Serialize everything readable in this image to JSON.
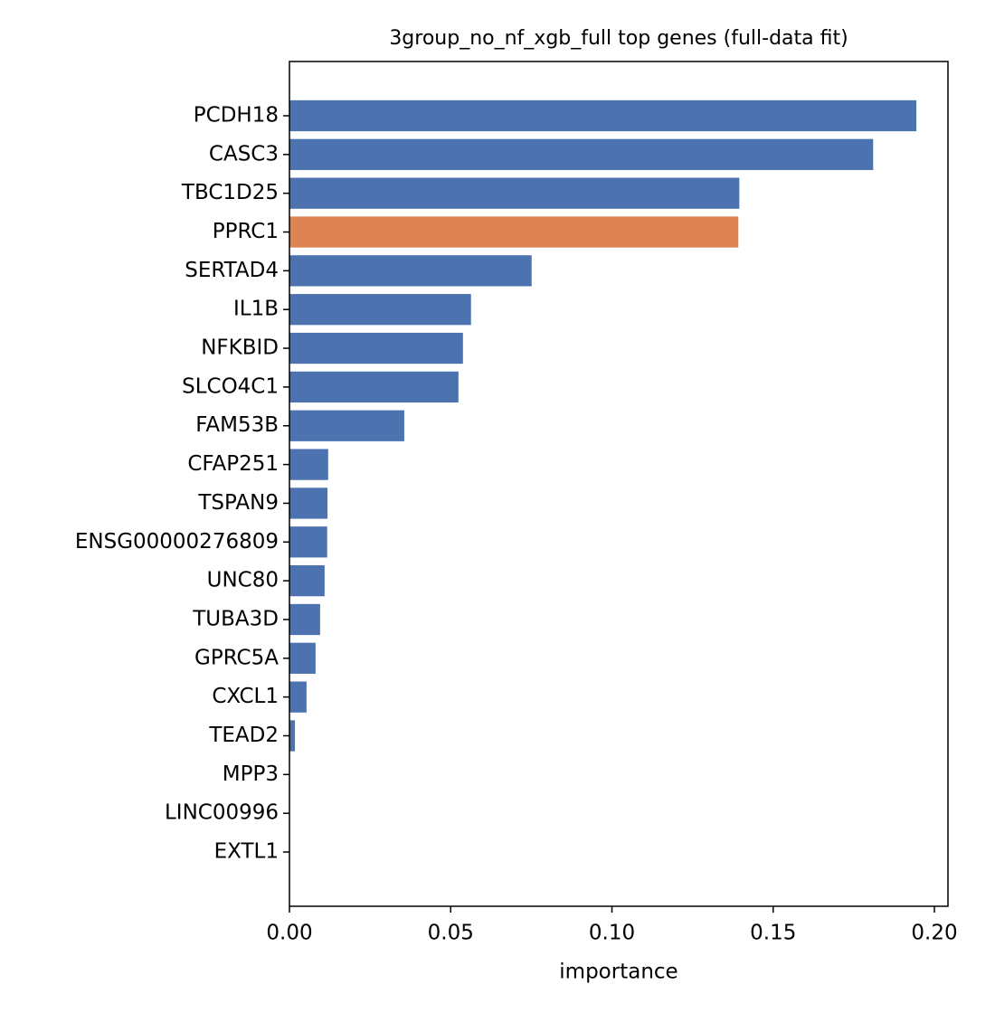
{
  "chart_data": {
    "type": "barh",
    "title": "3group_no_nf_xgb_full top genes (full-data fit)",
    "x_label": "importance",
    "categories": [
      "PCDH18",
      "CASC3",
      "TBC1D25",
      "PPRC1",
      "SERTAD4",
      "IL1B",
      "NFKBID",
      "SLCO4C1",
      "FAM53B",
      "CFAP251",
      "TSPAN9",
      "ENSG00000276809",
      "UNC80",
      "TUBA3D",
      "GPRC5A",
      "CXCL1",
      "TEAD2",
      "MPP3",
      "LINC00996",
      "EXTL1"
    ],
    "values": [
      0.1944,
      0.181,
      0.1395,
      0.1392,
      0.0751,
      0.0563,
      0.0538,
      0.0524,
      0.0356,
      0.012,
      0.0118,
      0.0117,
      0.0109,
      0.0095,
      0.0081,
      0.0053,
      0.0017,
      0,
      0,
      0
    ],
    "colors": [
      "#4c72b0",
      "#4c72b0",
      "#4c72b0",
      "#dd8452",
      "#4c72b0",
      "#4c72b0",
      "#4c72b0",
      "#4c72b0",
      "#4c72b0",
      "#4c72b0",
      "#4c72b0",
      "#4c72b0",
      "#4c72b0",
      "#4c72b0",
      "#4c72b0",
      "#4c72b0",
      "#4c72b0",
      "#4c72b0",
      "#4c72b0",
      "#4c72b0"
    ],
    "xlim": [
      0,
      0.2042
    ],
    "xticks": [
      {
        "value": 0,
        "label": "0.00"
      },
      {
        "value": 0.05,
        "label": "0.05"
      },
      {
        "value": 0.1,
        "label": "0.10"
      },
      {
        "value": 0.15,
        "label": "0.15"
      },
      {
        "value": 0.2,
        "label": "0.20"
      }
    ]
  }
}
